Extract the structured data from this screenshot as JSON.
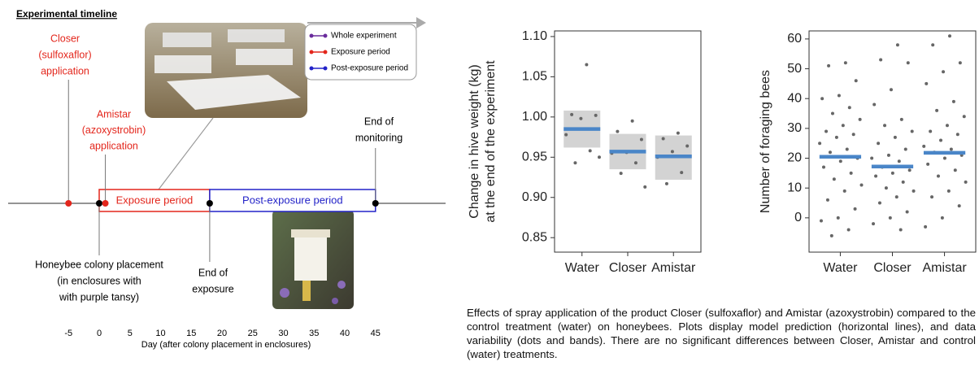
{
  "timeline": {
    "title": "Experimental timeline",
    "xlabel": "Day (after colony placement in enclosures)",
    "xticks": [
      -5,
      0,
      5,
      10,
      15,
      20,
      25,
      30,
      35,
      40,
      45
    ],
    "events": [
      {
        "day": -5,
        "color": "#e3261c",
        "label": [
          "Closer",
          "(sulfoxaflor)",
          "application"
        ]
      },
      {
        "day": 0,
        "color": "#000000",
        "label": [
          "Honeybee colony placement",
          "(in enclosures with",
          "with purple tansy)"
        ]
      },
      {
        "day": 1,
        "color": "#e3261c",
        "label": [
          "Amistar",
          "(azoxystrobin)",
          "application"
        ]
      },
      {
        "day": 18,
        "color": "#000000",
        "label": [
          "End of",
          "exposure"
        ]
      },
      {
        "day": 45,
        "color": "#000000",
        "label": [
          "End of",
          "monitoring"
        ]
      }
    ],
    "periods": [
      {
        "label": "Exposure period",
        "start": 0,
        "end": 18,
        "color": "#e3261c"
      },
      {
        "label": "Post-exposure period",
        "start": 18,
        "end": 45,
        "color": "#2323c8"
      }
    ],
    "legend": [
      {
        "name": "Whole experiment",
        "color": "#6a2c9c"
      },
      {
        "name": "Exposure period",
        "color": "#e3261c"
      },
      {
        "name": "Post-exposure period",
        "color": "#2323c8"
      }
    ]
  },
  "chart_data": [
    {
      "type": "strip",
      "ylabel": [
        "Change in hive weight (kg)",
        "at the end of the experiment"
      ],
      "categories": [
        "Water",
        "Closer",
        "Amistar"
      ],
      "points": [
        [
          1.065,
          1.003,
          1.002,
          0.998,
          0.978,
          0.958,
          0.943,
          0.95
        ],
        [
          0.995,
          0.982,
          0.972,
          0.956,
          0.955,
          0.943,
          0.93,
          0.913
        ],
        [
          0.98,
          0.973,
          0.964,
          0.957,
          0.95,
          0.931,
          0.917
        ]
      ],
      "means": [
        0.985,
        0.957,
        0.951
      ],
      "bands": [
        [
          0.962,
          1.008
        ],
        [
          0.935,
          0.979
        ],
        [
          0.922,
          0.977
        ]
      ],
      "point_color": "#666666",
      "mean_color": "#4a86c8",
      "band_color": "#d3d3d3",
      "ylim": [
        0.832,
        1.107
      ],
      "yticks": [
        0.85,
        {
          "value": 0.9,
          "label": "0.90"
        },
        0.95,
        {
          "value": 1,
          "label": "1.00"
        },
        1.05,
        {
          "value": 1.1,
          "label": "1.10"
        }
      ]
    },
    {
      "type": "strip",
      "ylabel": [
        "Number of foraging bees"
      ],
      "categories": [
        "Water",
        "Closer",
        "Amistar"
      ],
      "points": [
        [
          52,
          51,
          46,
          41,
          40,
          37,
          35,
          33,
          31,
          29,
          28,
          27,
          25,
          23,
          22,
          20,
          19,
          17,
          15,
          13,
          11,
          9,
          6,
          3,
          0,
          -1,
          -4,
          -6
        ],
        [
          58,
          53,
          52,
          43,
          38,
          33,
          31,
          29,
          27,
          25,
          23,
          21,
          20,
          19,
          17,
          16,
          15,
          14,
          12,
          10,
          9,
          7,
          5,
          2,
          0,
          -2,
          -4
        ],
        [
          61,
          58,
          52,
          49,
          45,
          39,
          36,
          34,
          31,
          29,
          28,
          26,
          24,
          23,
          22,
          21,
          20,
          18,
          16,
          14,
          12,
          9,
          7,
          4,
          0,
          -3
        ]
      ],
      "means": [
        20.5,
        17.2,
        21.8
      ],
      "point_color": "#666666",
      "mean_color": "#4a86c8",
      "ylim": [
        -11.5,
        62.7
      ],
      "yticks": [
        0,
        10,
        20,
        30,
        40,
        50,
        60
      ]
    }
  ],
  "caption": "Effects of spray application of the product Closer (sulfoxaflor) and Amistar (azoxystrobin) compared to the control treatment (water) on honeybees. Plots display model prediction (horizontal lines), and data variability (dots and bands). There are no significant differences between Closer, Amistar and control (water) treatments."
}
